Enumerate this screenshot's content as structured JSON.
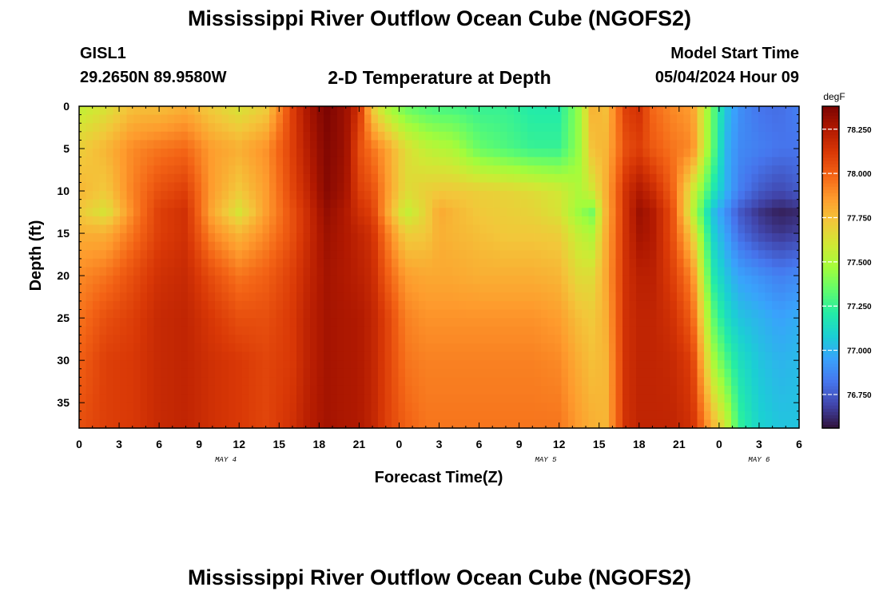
{
  "header": {
    "title": "Mississippi River Outflow Ocean Cube (NGOFS2)",
    "station_id": "GISL1",
    "station_coords": "29.2650N  89.9580W",
    "subtitle": "2-D Temperature at Depth",
    "model_start_label": "Model Start Time",
    "model_start_value": "05/04/2024 Hour 09"
  },
  "footer": {
    "title": "Mississippi River Outflow Ocean Cube (NGOFS2)"
  },
  "chart_data": {
    "type": "heatmap",
    "title": "2-D Temperature at Depth",
    "xlabel": "Forecast Time(Z)",
    "ylabel": "Depth (ft)",
    "x_ticks": [
      "0",
      "3",
      "6",
      "9",
      "12",
      "15",
      "18",
      "21",
      "0",
      "3",
      "6",
      "9",
      "12",
      "15",
      "18",
      "21",
      "0",
      "3",
      "6"
    ],
    "x_dates": [
      "MAY 4",
      "MAY 5",
      "MAY 6"
    ],
    "x_range_hours": [
      0,
      54
    ],
    "y_ticks": [
      "0",
      "5",
      "10",
      "15",
      "20",
      "25",
      "30",
      "35"
    ],
    "ylim": [
      0,
      38
    ],
    "colorbar": {
      "unit": "degF",
      "range": [
        76.56,
        78.38
      ],
      "ticks": [
        "78.250",
        "78.000",
        "77.750",
        "77.500",
        "77.250",
        "77.000",
        "76.750"
      ],
      "colormap": "turbo"
    },
    "approx_profiles": {
      "times_hours": [
        0,
        2,
        4,
        6,
        8,
        10,
        12,
        14,
        16,
        17,
        18.5,
        20,
        21,
        22,
        23,
        24.5,
        26,
        27,
        28,
        30,
        32,
        34,
        36,
        37.5,
        38.5,
        39.5,
        41,
        42,
        43,
        44.5,
        46,
        47.5,
        48.5,
        49.5,
        51,
        52.5,
        54
      ],
      "depths_ft": [
        0,
        5,
        10,
        12.5,
        15,
        20,
        25,
        30,
        38
      ],
      "temperature_degF": [
        [
          77.55,
          77.7,
          77.78,
          77.72,
          77.8,
          77.9,
          77.95,
          78.0,
          78.05
        ],
        [
          77.62,
          77.78,
          77.72,
          77.62,
          77.8,
          77.95,
          78.05,
          78.1,
          78.1
        ],
        [
          77.75,
          77.9,
          77.92,
          77.9,
          77.95,
          78.05,
          78.1,
          78.12,
          78.12
        ],
        [
          77.75,
          77.95,
          78.05,
          78.1,
          78.1,
          78.15,
          78.18,
          78.18,
          78.18
        ],
        [
          77.8,
          77.98,
          78.1,
          78.15,
          78.15,
          78.18,
          78.2,
          78.2,
          78.2
        ],
        [
          77.7,
          77.85,
          77.85,
          77.82,
          77.9,
          78.05,
          78.12,
          78.15,
          78.15
        ],
        [
          77.62,
          77.8,
          77.72,
          77.62,
          77.78,
          77.95,
          78.05,
          78.12,
          78.12
        ],
        [
          77.7,
          77.88,
          77.85,
          77.85,
          77.9,
          78.0,
          78.05,
          78.08,
          78.08
        ],
        [
          78.1,
          78.1,
          78.08,
          78.05,
          78.05,
          78.1,
          78.12,
          78.12,
          78.15
        ],
        [
          78.25,
          78.22,
          78.18,
          78.15,
          78.15,
          78.18,
          78.2,
          78.2,
          78.22
        ],
        [
          78.38,
          78.36,
          78.35,
          78.32,
          78.3,
          78.28,
          78.28,
          78.28,
          78.28
        ],
        [
          78.3,
          78.3,
          78.28,
          78.25,
          78.25,
          78.25,
          78.26,
          78.26,
          78.26
        ],
        [
          78.15,
          78.05,
          78.1,
          78.15,
          78.2,
          78.22,
          78.25,
          78.25,
          78.25
        ],
        [
          77.7,
          77.95,
          78.05,
          78.1,
          78.15,
          78.18,
          78.2,
          78.2,
          78.2
        ],
        [
          77.5,
          77.85,
          77.88,
          77.85,
          77.95,
          78.02,
          78.1,
          78.1,
          78.1
        ],
        [
          77.35,
          77.65,
          77.65,
          77.55,
          77.7,
          77.85,
          77.92,
          77.95,
          78.0
        ],
        [
          77.3,
          77.55,
          77.7,
          77.68,
          77.72,
          77.82,
          77.88,
          77.92,
          77.95
        ],
        [
          77.28,
          77.52,
          77.72,
          77.82,
          77.8,
          77.82,
          77.88,
          77.92,
          77.95
        ],
        [
          77.28,
          77.5,
          77.72,
          77.78,
          77.78,
          77.82,
          77.88,
          77.92,
          77.95
        ],
        [
          77.25,
          77.35,
          77.7,
          77.72,
          77.75,
          77.8,
          77.88,
          77.92,
          77.95
        ],
        [
          77.25,
          77.3,
          77.68,
          77.7,
          77.72,
          77.8,
          77.88,
          77.92,
          77.95
        ],
        [
          77.2,
          77.25,
          77.65,
          77.68,
          77.72,
          77.8,
          77.88,
          77.92,
          77.95
        ],
        [
          77.2,
          77.25,
          77.6,
          77.62,
          77.7,
          77.78,
          77.85,
          77.9,
          77.95
        ],
        [
          77.45,
          77.45,
          77.5,
          77.45,
          77.55,
          77.65,
          77.75,
          77.8,
          77.85
        ],
        [
          77.8,
          77.75,
          77.6,
          77.38,
          77.5,
          77.65,
          77.72,
          77.75,
          77.8
        ],
        [
          77.75,
          77.78,
          77.8,
          77.78,
          77.8,
          77.82,
          77.8,
          77.78,
          77.78
        ],
        [
          78.1,
          78.05,
          78.15,
          78.15,
          78.15,
          78.15,
          78.15,
          78.15,
          78.15
        ],
        [
          78.15,
          78.1,
          78.25,
          78.3,
          78.28,
          78.22,
          78.2,
          78.2,
          78.2
        ],
        [
          77.98,
          78.02,
          78.18,
          78.25,
          78.25,
          78.22,
          78.2,
          78.2,
          78.2
        ],
        [
          77.9,
          77.95,
          78.0,
          78.05,
          78.05,
          78.1,
          78.15,
          78.18,
          78.2
        ],
        [
          77.85,
          77.9,
          77.6,
          77.55,
          77.7,
          77.9,
          78.0,
          78.1,
          78.15
        ],
        [
          77.35,
          77.35,
          77.2,
          77.05,
          77.1,
          77.2,
          77.35,
          77.5,
          77.8
        ],
        [
          77.05,
          77.0,
          77.0,
          76.9,
          76.95,
          77.05,
          77.15,
          77.3,
          77.6
        ],
        [
          76.9,
          76.88,
          76.85,
          76.75,
          76.8,
          76.95,
          77.05,
          77.15,
          77.25
        ],
        [
          76.82,
          76.85,
          76.75,
          76.65,
          76.7,
          76.9,
          77.0,
          77.05,
          77.1
        ],
        [
          76.8,
          76.82,
          76.7,
          76.6,
          76.65,
          76.85,
          76.95,
          77.0,
          77.05
        ],
        [
          76.85,
          76.82,
          76.75,
          76.62,
          76.68,
          76.88,
          76.98,
          77.02,
          77.05
        ]
      ]
    }
  },
  "colors": {
    "colormap": [
      "#30123b",
      "#4145ab",
      "#4675ed",
      "#39a2fc",
      "#1bcfd4",
      "#24eca6",
      "#61fc6c",
      "#a4fc3b",
      "#d1e834",
      "#f3c63a",
      "#fe9b2d",
      "#f36315",
      "#d93806",
      "#b11901",
      "#7a0402"
    ]
  }
}
